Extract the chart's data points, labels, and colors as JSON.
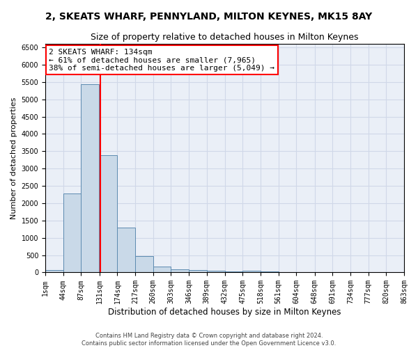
{
  "title": "2, SKEATS WHARF, PENNYLAND, MILTON KEYNES, MK15 8AY",
  "subtitle": "Size of property relative to detached houses in Milton Keynes",
  "xlabel": "Distribution of detached houses by size in Milton Keynes",
  "ylabel": "Number of detached properties",
  "footer_line1": "Contains HM Land Registry data © Crown copyright and database right 2024.",
  "footer_line2": "Contains public sector information licensed under the Open Government Licence v3.0.",
  "bar_left_edges": [
    1,
    44,
    87,
    131,
    174,
    217,
    260,
    303,
    346,
    389,
    432,
    475,
    518,
    561,
    604,
    648,
    691,
    734,
    777,
    820
  ],
  "bar_heights": [
    60,
    2280,
    5430,
    3390,
    1305,
    480,
    165,
    95,
    65,
    45,
    35,
    55,
    25,
    15,
    10,
    5,
    5,
    5,
    5,
    5
  ],
  "bin_width": 43,
  "bar_color": "#c9d9e8",
  "bar_edge_color": "#5c8ab0",
  "vline_x": 134,
  "vline_color": "red",
  "annotation_line1": "2 SKEATS WHARF: 134sqm",
  "annotation_line2": "← 61% of detached houses are smaller (7,965)",
  "annotation_line3": "38% of semi-detached houses are larger (5,049) →",
  "ylim": [
    0,
    6600
  ],
  "xlim": [
    1,
    863
  ],
  "yticks": [
    0,
    500,
    1000,
    1500,
    2000,
    2500,
    3000,
    3500,
    4000,
    4500,
    5000,
    5500,
    6000,
    6500
  ],
  "xtick_labels": [
    "1sqm",
    "44sqm",
    "87sqm",
    "131sqm",
    "174sqm",
    "217sqm",
    "260sqm",
    "303sqm",
    "346sqm",
    "389sqm",
    "432sqm",
    "475sqm",
    "518sqm",
    "561sqm",
    "604sqm",
    "648sqm",
    "691sqm",
    "734sqm",
    "777sqm",
    "820sqm",
    "863sqm"
  ],
  "xtick_positions": [
    1,
    44,
    87,
    131,
    174,
    217,
    260,
    303,
    346,
    389,
    432,
    475,
    518,
    561,
    604,
    648,
    691,
    734,
    777,
    820,
    863
  ],
  "grid_color": "#d0d8e8",
  "bg_color": "#eaeff7",
  "title_fontsize": 10,
  "subtitle_fontsize": 9,
  "ylabel_fontsize": 8,
  "xlabel_fontsize": 8.5,
  "tick_fontsize": 7,
  "annotation_fontsize": 8,
  "footer_fontsize": 6
}
